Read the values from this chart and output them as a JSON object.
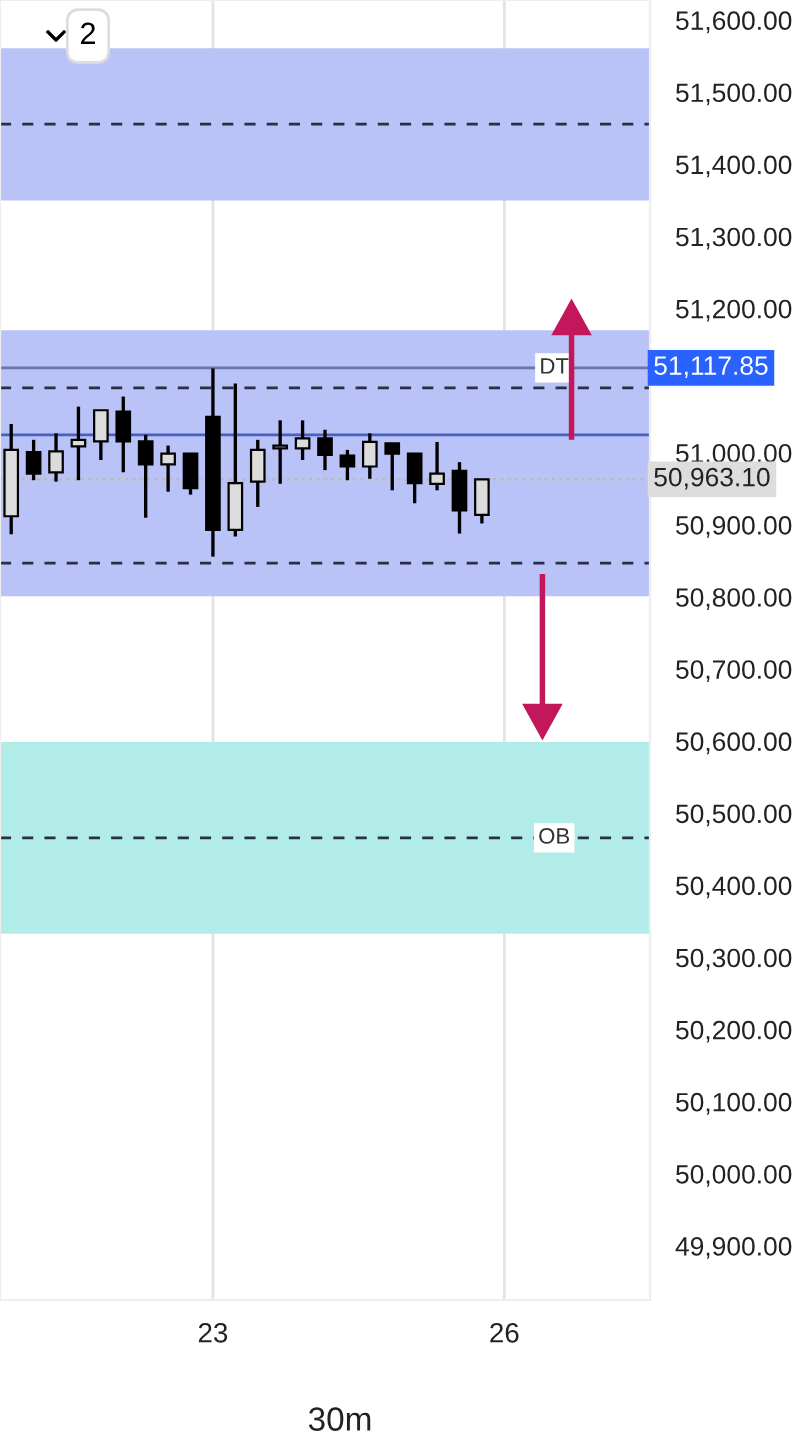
{
  "chart_data": {
    "type": "candlestick",
    "categories": [
      null,
      null,
      null,
      null,
      null,
      null,
      null,
      null,
      null,
      "23",
      null,
      null,
      null,
      null,
      null,
      null,
      null,
      null,
      null,
      null,
      null,
      null,
      "26",
      null,
      null,
      null,
      null,
      null,
      null
    ],
    "ohlc": [
      [
        50912,
        51040,
        50887,
        51004
      ],
      [
        51001,
        51018,
        50962,
        50971
      ],
      [
        50973,
        51027,
        50960,
        51002
      ],
      [
        51009,
        51064,
        50962,
        51018
      ],
      [
        51016,
        51059,
        50990,
        51059
      ],
      [
        51057,
        51078,
        50973,
        51016
      ],
      [
        51016,
        51025,
        50910,
        50984
      ],
      [
        50984,
        51010,
        50946,
        50999
      ],
      [
        50999,
        50999,
        50942,
        50951
      ],
      [
        51050,
        51117,
        50856,
        50893
      ],
      [
        50893,
        51096,
        50884,
        50958
      ],
      [
        50960,
        51018,
        50925,
        51004
      ],
      [
        51006,
        51045,
        50957,
        51010
      ],
      [
        51006,
        51045,
        50990,
        51020
      ],
      [
        51020,
        51032,
        50976,
        50997
      ],
      [
        50996,
        51004,
        50962,
        50981
      ],
      [
        50981,
        51027,
        50964,
        51015
      ],
      [
        51013,
        51013,
        50948,
        50999
      ],
      [
        50999,
        50999,
        50930,
        50958
      ],
      [
        50957,
        51015,
        50948,
        50971
      ],
      [
        50975,
        50987,
        50888,
        50920
      ],
      [
        50914,
        50963,
        50902,
        50963
      ],
      null,
      null,
      null,
      null,
      null,
      null,
      null
    ],
    "ylim": [
      49825,
      51628
    ],
    "yticks": [
      {
        "value": 49900,
        "label": "49,900.00"
      },
      {
        "value": 50000,
        "label": "50,000.00"
      },
      {
        "value": 50100,
        "label": "50,100.00"
      },
      {
        "value": 50200,
        "label": "50,200.00"
      },
      {
        "value": 50300,
        "label": "50,300.00"
      },
      {
        "value": 50400,
        "label": "50,400.00"
      },
      {
        "value": 50500,
        "label": "50,500.00"
      },
      {
        "value": 50600,
        "label": "50,600.00"
      },
      {
        "value": 50700,
        "label": "50,700.00"
      },
      {
        "value": 50800,
        "label": "50,800.00"
      },
      {
        "value": 50900,
        "label": "50,900.00"
      },
      {
        "value": 51000,
        "label": "51,000.00"
      },
      {
        "value": 51200,
        "label": "51,200.00"
      },
      {
        "value": 51300,
        "label": "51,300.00"
      },
      {
        "value": 51400,
        "label": "51,400.00"
      },
      {
        "value": 51500,
        "label": "51,500.00"
      },
      {
        "value": 51600,
        "label": "51,600.00"
      }
    ],
    "grid": "x",
    "bands": [
      {
        "axis": "y",
        "from": 51350,
        "to": 51561,
        "label": null,
        "color": "#b9c3f7"
      },
      {
        "axis": "y",
        "from": 50890,
        "to": 51170,
        "label": null,
        "color": "#b9c3f7"
      },
      {
        "axis": "y",
        "from": 50801,
        "to": 50890,
        "label": null,
        "color": "#b9c3f7"
      },
      {
        "axis": "y",
        "from": 50333,
        "to": 50599,
        "label": null,
        "color": "#b2ece8"
      }
    ],
    "ref_lines": [
      {
        "axis": "y",
        "value": 51456,
        "label": null,
        "color": "#2b2f45",
        "line_style": "dashed"
      },
      {
        "axis": "y",
        "value": 51090,
        "label": null,
        "color": "#2b2f45",
        "line_style": "dashed"
      },
      {
        "axis": "y",
        "value": 51025,
        "label": null,
        "color": "#4a5fc0",
        "line_style": "solid"
      },
      {
        "axis": "y",
        "value": 50847,
        "label": null,
        "color": "#2b2f45",
        "line_style": "dashed"
      },
      {
        "axis": "y",
        "value": 50466,
        "label": "OB",
        "color": "#2b2f45",
        "line_style": "dashed"
      },
      {
        "axis": "y",
        "value": 51117.85,
        "label": "DT",
        "color": "#6a76a8",
        "line_style": "solid"
      },
      {
        "axis": "y",
        "value": 50963.1,
        "label": null,
        "color": "#bbbbbb",
        "line_style": "dotted"
      }
    ],
    "annotations": [
      "51,117.85",
      "50,963.10",
      "2",
      "30m"
    ]
  }
}
